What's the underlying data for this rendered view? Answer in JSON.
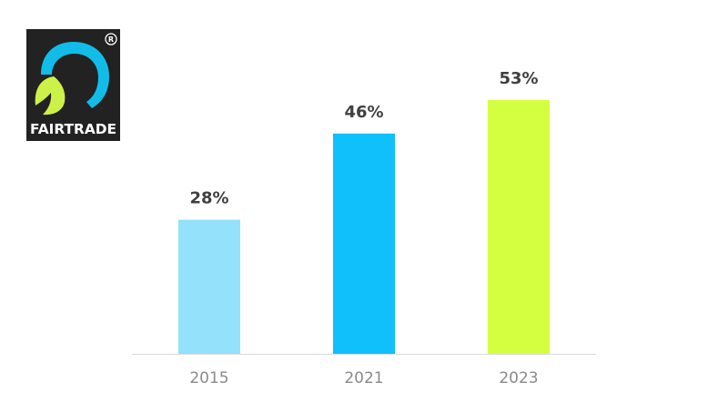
{
  "logo": {
    "brand": "FAIRTRADE",
    "registered_mark": "R",
    "colors": {
      "background": "#222222",
      "blue": "#11bde8",
      "green": "#ccf148",
      "figure": "#222222",
      "text": "#ffffff"
    }
  },
  "chart_data": {
    "type": "bar",
    "categories": [
      "2015",
      "2021",
      "2023"
    ],
    "values": [
      28,
      46,
      53
    ],
    "value_labels": [
      "28%",
      "46%",
      "53%"
    ],
    "unit": "%",
    "colors": [
      "#93e1fb",
      "#0fc0fb",
      "#d4ff40"
    ],
    "baseline_color": "#d9d9d9",
    "ylim": [
      0,
      53
    ],
    "grid": false,
    "legend": "none",
    "title": "",
    "xlabel": "",
    "ylabel": ""
  }
}
